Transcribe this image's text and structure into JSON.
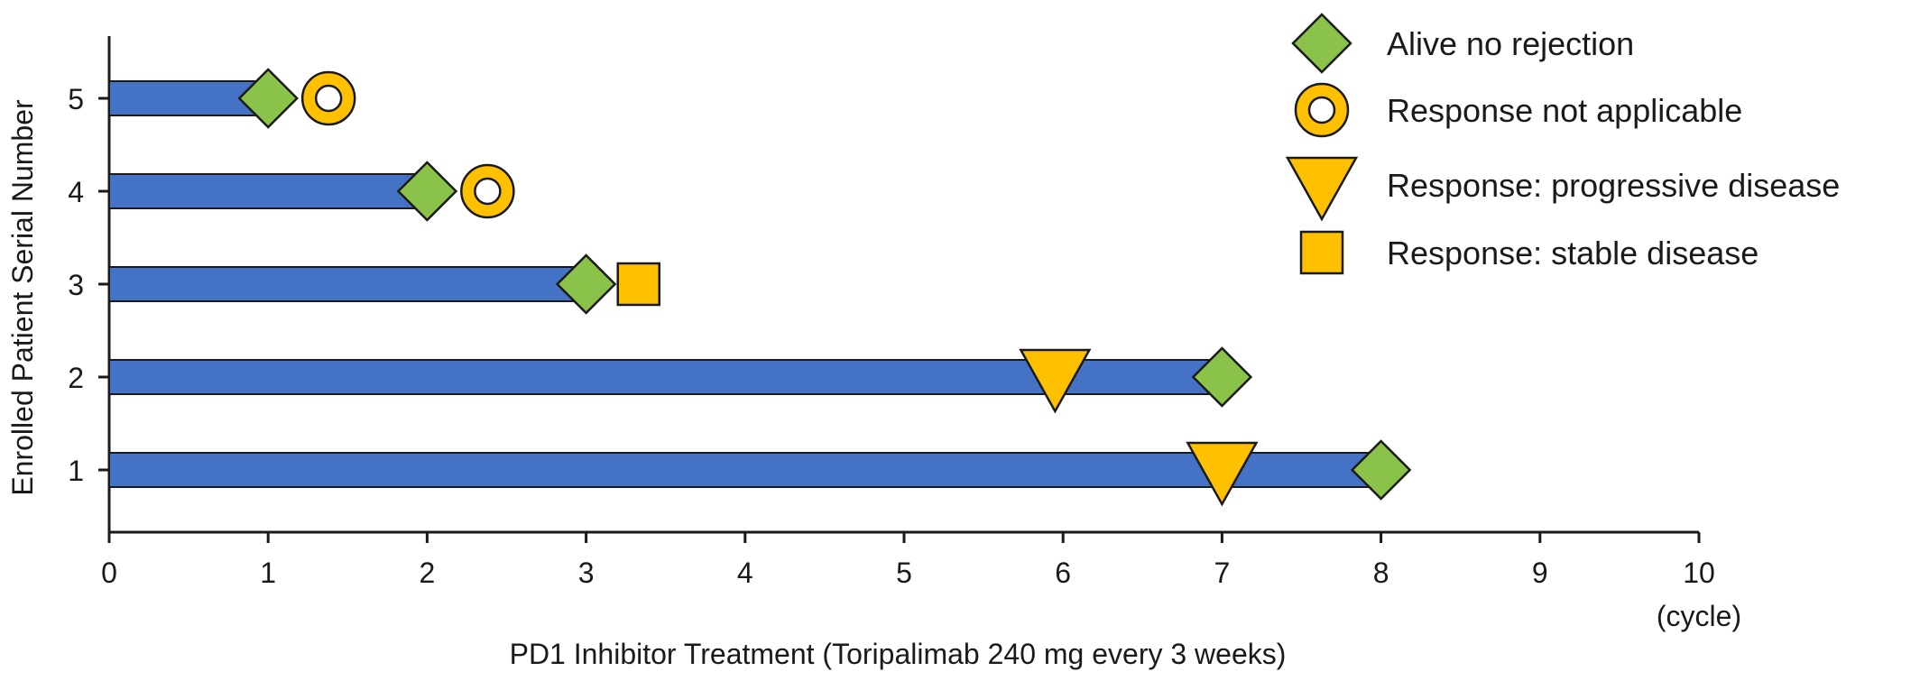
{
  "chart_data": {
    "type": "swimmer",
    "xlabel": "PD1 Inhibitor Treatment (Toripalimab 240 mg every 3 weeks)",
    "x_unit": "(cycle)",
    "ylabel": "Enrolled Patient Serial Number",
    "xlim": [
      0,
      10
    ],
    "x_ticks": [
      "0",
      "1",
      "2",
      "3",
      "4",
      "5",
      "6",
      "7",
      "8",
      "9",
      "10"
    ],
    "y_ticks": [
      "1",
      "2",
      "3",
      "4",
      "5"
    ],
    "bar_color": "#4472C4",
    "patients": [
      {
        "id": "1",
        "duration": 8,
        "events": [
          {
            "type": "progressive",
            "x": 7.0
          },
          {
            "type": "alive",
            "x": 8.0
          }
        ]
      },
      {
        "id": "2",
        "duration": 7,
        "events": [
          {
            "type": "progressive",
            "x": 5.95
          },
          {
            "type": "alive",
            "x": 7.0
          }
        ]
      },
      {
        "id": "3",
        "duration": 3,
        "events": [
          {
            "type": "alive",
            "x": 3.0
          },
          {
            "type": "stable",
            "x": 3.33
          }
        ]
      },
      {
        "id": "4",
        "duration": 2,
        "events": [
          {
            "type": "alive",
            "x": 2.0
          },
          {
            "type": "not_applicable",
            "x": 2.38
          }
        ]
      },
      {
        "id": "5",
        "duration": 1,
        "events": [
          {
            "type": "alive",
            "x": 1.0
          },
          {
            "type": "not_applicable",
            "x": 1.38
          }
        ]
      }
    ],
    "legend": {
      "position": "top-right",
      "items": [
        {
          "type": "alive",
          "label": "Alive no rejection",
          "color": "#8BC34A"
        },
        {
          "type": "not_applicable",
          "label": "Response not applicable",
          "color": "#FFC000"
        },
        {
          "type": "progressive",
          "label": "Response: progressive disease",
          "color": "#FFC000"
        },
        {
          "type": "stable",
          "label": "Response: stable disease",
          "color": "#FFC000"
        }
      ]
    }
  }
}
